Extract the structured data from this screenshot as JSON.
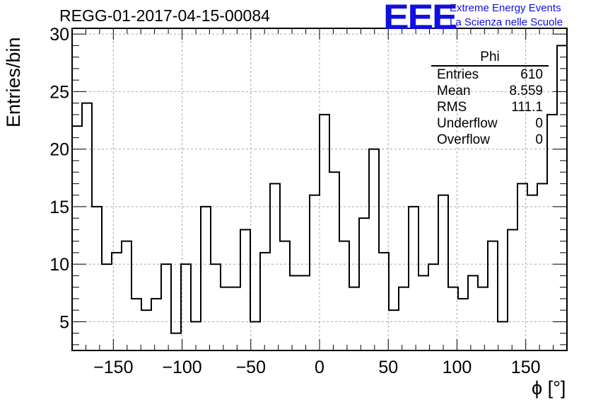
{
  "chart_data": {
    "type": "histogram",
    "title": "REGG-01-2017-04-15-00084",
    "xlabel": "ϕ [°]",
    "ylabel": "Entries/bin",
    "xlim": [
      -180,
      180
    ],
    "ylim": [
      2.5,
      30.5
    ],
    "bin_width": 7.2,
    "xticks": [
      -150,
      -100,
      -50,
      0,
      50,
      100,
      150
    ],
    "yticks": [
      5,
      10,
      15,
      20,
      25,
      30
    ],
    "grid": true,
    "values": [
      22,
      24,
      15,
      10,
      11,
      12,
      7,
      6,
      7,
      10,
      4,
      10,
      5,
      15,
      10,
      8,
      8,
      13,
      5,
      11,
      17,
      12,
      9,
      9,
      16,
      23,
      18,
      12,
      8,
      14,
      20,
      11,
      6,
      8,
      15,
      9,
      10,
      16,
      8,
      7,
      9,
      8,
      12,
      5,
      13,
      17,
      16,
      17,
      23,
      29
    ],
    "stats": {
      "name": "Phi",
      "entries_label": "Entries",
      "entries": "610",
      "mean_label": "Mean",
      "mean": "8.559",
      "rms_label": "RMS",
      "rms": "111.1",
      "underflow_label": "Underflow",
      "underflow": "0",
      "overflow_label": "Overflow",
      "overflow": "0"
    }
  },
  "branding": {
    "logo": "EEE",
    "line1": "Extreme Energy Events",
    "line2": "La Scienza nelle Scuole",
    "color": "#1010e0"
  }
}
